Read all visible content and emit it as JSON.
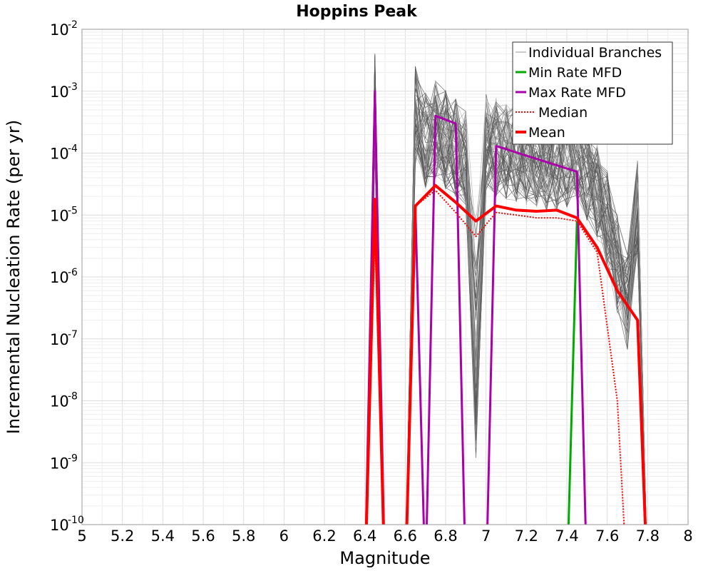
{
  "chart_data": {
    "type": "line",
    "title": "Hoppins Peak",
    "xlabel": "Magnitude",
    "ylabel": "Incremental Nucleation Rate (per yr)",
    "xlim": [
      5,
      8
    ],
    "ylim": [
      1e-10,
      0.01
    ],
    "yscale": "log",
    "grid": true,
    "legend_position": "top-right",
    "x_ticks": [
      "5",
      "5.2",
      "5.4",
      "5.6",
      "5.8",
      "6",
      "6.2",
      "6.4",
      "6.6",
      "6.8",
      "7",
      "7.2",
      "7.4",
      "7.6",
      "7.8",
      "8"
    ],
    "y_ticks": [
      {
        "base": "10",
        "exp": "-10",
        "value": 1e-10
      },
      {
        "base": "10",
        "exp": "-9",
        "value": 1e-09
      },
      {
        "base": "10",
        "exp": "-8",
        "value": 1e-08
      },
      {
        "base": "10",
        "exp": "-7",
        "value": 1e-07
      },
      {
        "base": "10",
        "exp": "-6",
        "value": 1e-06
      },
      {
        "base": "10",
        "exp": "-5",
        "value": 1e-05
      },
      {
        "base": "10",
        "exp": "-4",
        "value": 0.0001
      },
      {
        "base": "10",
        "exp": "-3",
        "value": 0.001
      },
      {
        "base": "10",
        "exp": "-2",
        "value": 0.01
      }
    ],
    "series": [
      {
        "name": "Individual Branches",
        "color": "#4d4d4d",
        "style": "thin",
        "note_only_in_legend": false,
        "x": [
          6.4,
          6.45,
          6.5,
          6.6,
          6.65,
          6.7,
          6.75,
          6.8,
          6.85,
          6.9,
          6.95,
          7.0,
          7.05,
          7.1,
          7.15,
          7.2,
          7.25,
          7.3,
          7.35,
          7.4,
          7.45,
          7.5,
          7.55,
          7.6,
          7.65,
          7.7,
          7.75,
          7.8
        ],
        "y": [
          1e-10,
          0.0008,
          1e-10,
          1e-10,
          0.0005,
          0.0002,
          0.0003,
          0.0002,
          0.00015,
          0.0001,
          1e-08,
          0.00018,
          0.00015,
          0.00013,
          0.00012,
          0.00011,
          0.0001,
          9e-05,
          8e-05,
          0.0001,
          0.00012,
          6e-05,
          3e-05,
          1e-05,
          2e-06,
          5e-07,
          1.5e-05,
          1e-10
        ]
      },
      {
        "name": "Min Rate MFD",
        "color": "#00aa00",
        "x": [
          7.4,
          7.45
        ],
        "y": [
          1e-10,
          8e-06
        ]
      },
      {
        "name": "Max Rate MFD",
        "color": "#aa00aa",
        "x": [
          6.4,
          6.45,
          6.5,
          6.6,
          6.65,
          6.7,
          6.75,
          6.85,
          6.9,
          7.0,
          7.05,
          7.45,
          7.5
        ],
        "y": [
          1e-10,
          0.001,
          1e-10,
          1e-10,
          1.4e-05,
          1e-10,
          0.0004,
          0.0003,
          1e-10,
          1e-10,
          0.00013,
          5e-05,
          1e-10
        ]
      },
      {
        "name": "Median",
        "color": "#ff0000",
        "dashed": true,
        "x": [
          6.4,
          6.45,
          6.5,
          6.6,
          6.65,
          6.75,
          6.85,
          6.95,
          7.05,
          7.15,
          7.25,
          7.35,
          7.45,
          7.55,
          7.65,
          7.7
        ],
        "y": [
          1e-10,
          5e-06,
          1e-10,
          1e-10,
          1.4e-05,
          2.5e-05,
          1.1e-05,
          4.5e-06,
          1.1e-05,
          1e-05,
          9e-06,
          9e-06,
          8e-06,
          2.5e-06,
          1e-08,
          1e-10
        ]
      },
      {
        "name": "Mean",
        "color": "#ff0000",
        "x": [
          6.4,
          6.45,
          6.5,
          6.6,
          6.65,
          6.75,
          6.85,
          6.95,
          7.05,
          7.15,
          7.25,
          7.35,
          7.45,
          7.55,
          7.65,
          7.75,
          7.8
        ],
        "y": [
          1e-10,
          1.8e-05,
          1e-10,
          1e-10,
          1.4e-05,
          3e-05,
          1.6e-05,
          8e-06,
          1.4e-05,
          1.2e-05,
          1.15e-05,
          1.2e-05,
          9e-06,
          3e-06,
          6e-07,
          2e-07,
          1e-10
        ]
      }
    ]
  }
}
